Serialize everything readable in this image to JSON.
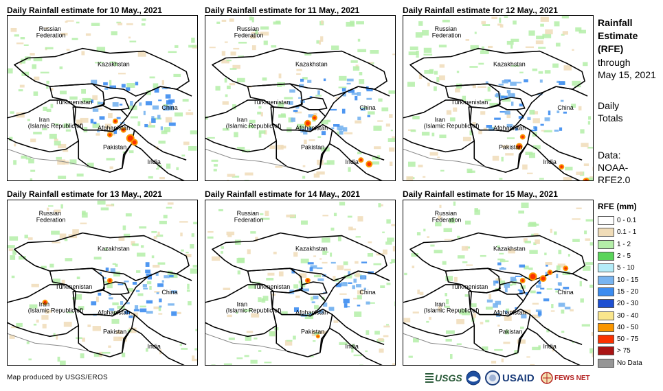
{
  "panels": [
    {
      "title": "Daily Rainfall estimate for 10 May., 2021",
      "heavy": [
        [
          180,
          180,
          4
        ],
        [
          186,
          186,
          3
        ],
        [
          170,
          168,
          2
        ],
        [
          158,
          155,
          2
        ],
        [
          150,
          175,
          2
        ]
      ]
    },
    {
      "title": "Daily Rainfall estimate for 11 May., 2021",
      "heavy": [
        [
          150,
          158,
          3
        ],
        [
          160,
          150,
          2
        ],
        [
          240,
          218,
          3
        ],
        [
          228,
          212,
          2
        ]
      ]
    },
    {
      "title": "Daily Rainfall estimate for 12 May., 2021",
      "heavy": [
        [
          170,
          192,
          3
        ],
        [
          175,
          178,
          2
        ],
        [
          268,
          243,
          3
        ],
        [
          232,
          222,
          2
        ]
      ]
    },
    {
      "title": "Daily Rainfall estimate for 13 May., 2021",
      "heavy": [
        [
          55,
          150,
          2
        ],
        [
          150,
          118,
          2
        ]
      ]
    },
    {
      "title": "Daily Rainfall estimate for 14 May., 2021",
      "heavy": [
        [
          150,
          118,
          2
        ],
        [
          165,
          200,
          1
        ]
      ]
    },
    {
      "title": "Daily Rainfall estimate for 15 May., 2021",
      "heavy": [
        [
          190,
          112,
          4
        ],
        [
          205,
          115,
          3
        ],
        [
          175,
          118,
          2
        ],
        [
          215,
          106,
          2
        ],
        [
          238,
          100,
          2
        ]
      ]
    }
  ],
  "map_labels": {
    "russia": [
      "Russian",
      "Federation"
    ],
    "kazakhstan": "Kazakhstan",
    "turkmenistan": "Turkmenistan",
    "iran": [
      "Iran",
      "(Islamic Republic of)"
    ],
    "afghanistan": "Afghanistan",
    "pakistan": "Pakistan",
    "india": "India",
    "china": "China"
  },
  "side": {
    "title": [
      "Rainfall",
      "Estimate",
      "(RFE)"
    ],
    "through": [
      "through",
      "May 15, 2021"
    ],
    "totals": [
      "Daily",
      "Totals"
    ],
    "data_source": [
      "Data:",
      "NOAA-",
      "RFE2.0"
    ]
  },
  "legend": {
    "title": "RFE (mm)",
    "items": [
      {
        "label": "0 - 0.1",
        "color": "#ffffff"
      },
      {
        "label": "0.1 - 1",
        "color": "#f0dcb8"
      },
      {
        "label": "1 - 2",
        "color": "#b4eea8"
      },
      {
        "label": "2 - 5",
        "color": "#5ad45a"
      },
      {
        "label": "5 - 10",
        "color": "#b4ecf8"
      },
      {
        "label": "10 - 15",
        "color": "#78b4f0"
      },
      {
        "label": "15 - 20",
        "color": "#3c8cf0"
      },
      {
        "label": "20 - 30",
        "color": "#1e50d2"
      },
      {
        "label": "30 - 40",
        "color": "#fae68c"
      },
      {
        "label": "40 - 50",
        "color": "#fa9600"
      },
      {
        "label": "50 - 75",
        "color": "#fa3200"
      },
      {
        "label": "> 75",
        "color": "#aa1414"
      },
      {
        "label": "No Data",
        "color": "#969696"
      }
    ]
  },
  "credit": "Map produced by USGS/EROS",
  "logos": {
    "usgs": "USGS",
    "usaid": "USAID",
    "fews": "FEWS NET"
  },
  "colors": {
    "land_border": "#000000",
    "minor_border": "#888888",
    "light_rain": "#b4eea8",
    "moderate_rain": "#78b4f0",
    "heavy_rain": "#fa3200"
  }
}
